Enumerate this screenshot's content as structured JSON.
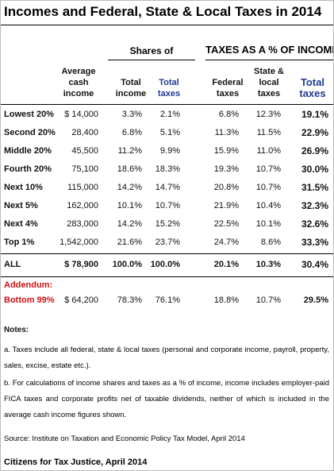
{
  "header": {
    "title": "Incomes and Federal, State & Local Taxes in 2014"
  },
  "table": {
    "group_headers": [
      "Shares of",
      "TAXES AS A % OF INCOME"
    ],
    "columns": [
      "Average cash income",
      "Total income",
      "Total taxes",
      "Federal taxes",
      "State & local taxes",
      "Total taxes"
    ],
    "rows": [
      [
        "Lowest 20%",
        "$ 14,000",
        "3.3%",
        "2.1%",
        "6.8%",
        "12.3%",
        "19.1%"
      ],
      [
        "Second 20%",
        "28,400",
        "6.8%",
        "5.1%",
        "11.3%",
        "11.5%",
        "22.9%"
      ],
      [
        "Middle 20%",
        "45,500",
        "11.2%",
        "9.9%",
        "15.9%",
        "11.0%",
        "26.9%"
      ],
      [
        "Fourth 20%",
        "75,100",
        "18.6%",
        "18.3%",
        "19.3%",
        "10.7%",
        "30.0%"
      ],
      [
        "Next 10%",
        "115,000",
        "14.2%",
        "14.7%",
        "20.8%",
        "10.7%",
        "31.5%"
      ],
      [
        "Next 5%",
        "162,000",
        "10.1%",
        "10.7%",
        "21.9%",
        "10.4%",
        "32.3%"
      ],
      [
        "Next 4%",
        "283,000",
        "14.2%",
        "15.2%",
        "22.5%",
        "10.1%",
        "32.6%"
      ],
      [
        "Top 1%",
        "1,542,000",
        "21.6%",
        "23.7%",
        "24.7%",
        "8.6%",
        "33.3%"
      ]
    ],
    "total": [
      "ALL",
      "$ 78,900",
      "100.0%",
      "100.0%",
      "20.1%",
      "10.3%",
      "30.4%"
    ],
    "addendum_label": "Addendum:",
    "addendum": [
      "Bottom 99%",
      "$ 64,200",
      "78.3%",
      "76.1%",
      "18.8%",
      "10.7%",
      "29.5%"
    ]
  },
  "notes": {
    "heading": "Notes:",
    "items": [
      "a. Taxes include all federal, state & local taxes (personal and corporate income, payroll, property, sales, excise, estate etc.).",
      "b. For calculations of income shares and taxes as a % of income, income includes employer-paid FICA taxes and corporate profits net of taxable dividends, neither of which is included in the average cash income figures shown."
    ],
    "source": "Source: Institute on Taxation and Economic Policy Tax Model, April 2014"
  },
  "footer": {
    "credit": "Citizens for Tax Justice, April 2014"
  }
}
